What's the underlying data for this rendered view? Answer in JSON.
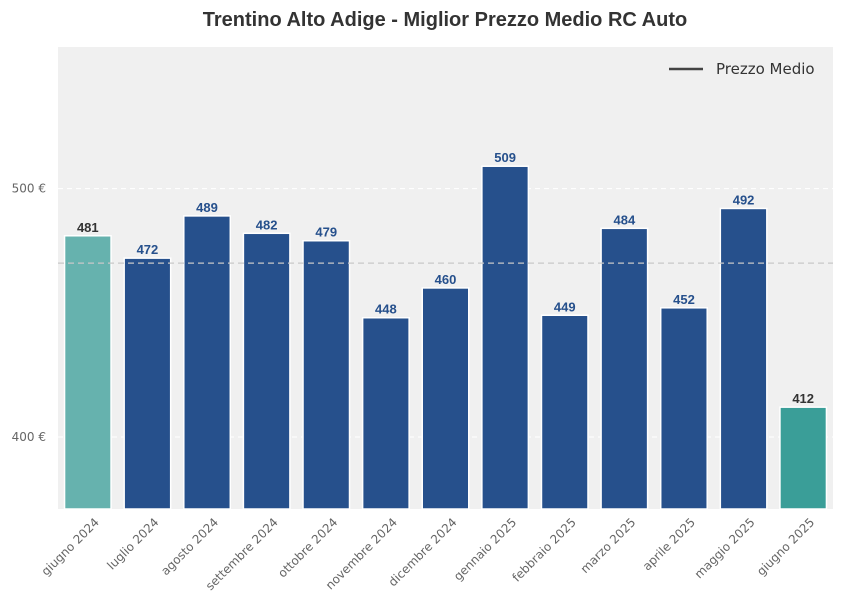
{
  "chart_data": {
    "type": "bar",
    "title": "Trentino Alto Adige - Miglior Prezzo Medio RC Auto",
    "xlabel": "",
    "ylabel": "",
    "categories": [
      "giugno 2024",
      "luglio 2024",
      "agosto 2024",
      "settembre 2024",
      "ottobre 2024",
      "novembre 2024",
      "dicembre 2024",
      "gennaio 2025",
      "febbraio 2025",
      "marzo 2025",
      "aprile 2025",
      "maggio 2025",
      "giugno 2025"
    ],
    "values": [
      481,
      472,
      489,
      482,
      479,
      448,
      460,
      509,
      449,
      484,
      452,
      492,
      412
    ],
    "value_labels": [
      "481",
      "472",
      "489",
      "482",
      "479",
      "448",
      "460",
      "509",
      "449",
      "484",
      "452",
      "492",
      "412"
    ],
    "ylim": [
      371,
      557
    ],
    "yticks": [
      400,
      500
    ],
    "ytick_labels": [
      "400 €",
      "500 €"
    ],
    "mean_line": {
      "value": 470,
      "style": "dashed"
    },
    "legend": {
      "label": "Prezzo Medio",
      "position": "top-right"
    },
    "grid": true,
    "colors": {
      "background": "#f0f0f0",
      "bar_default": "#26508c",
      "bar_first": "#66b2ae",
      "bar_last": "#3a9e98",
      "label_default": "#26508c",
      "label_highlight": "#333333",
      "mean_line": "#c8c8c8",
      "legend_line": "#444444"
    }
  }
}
